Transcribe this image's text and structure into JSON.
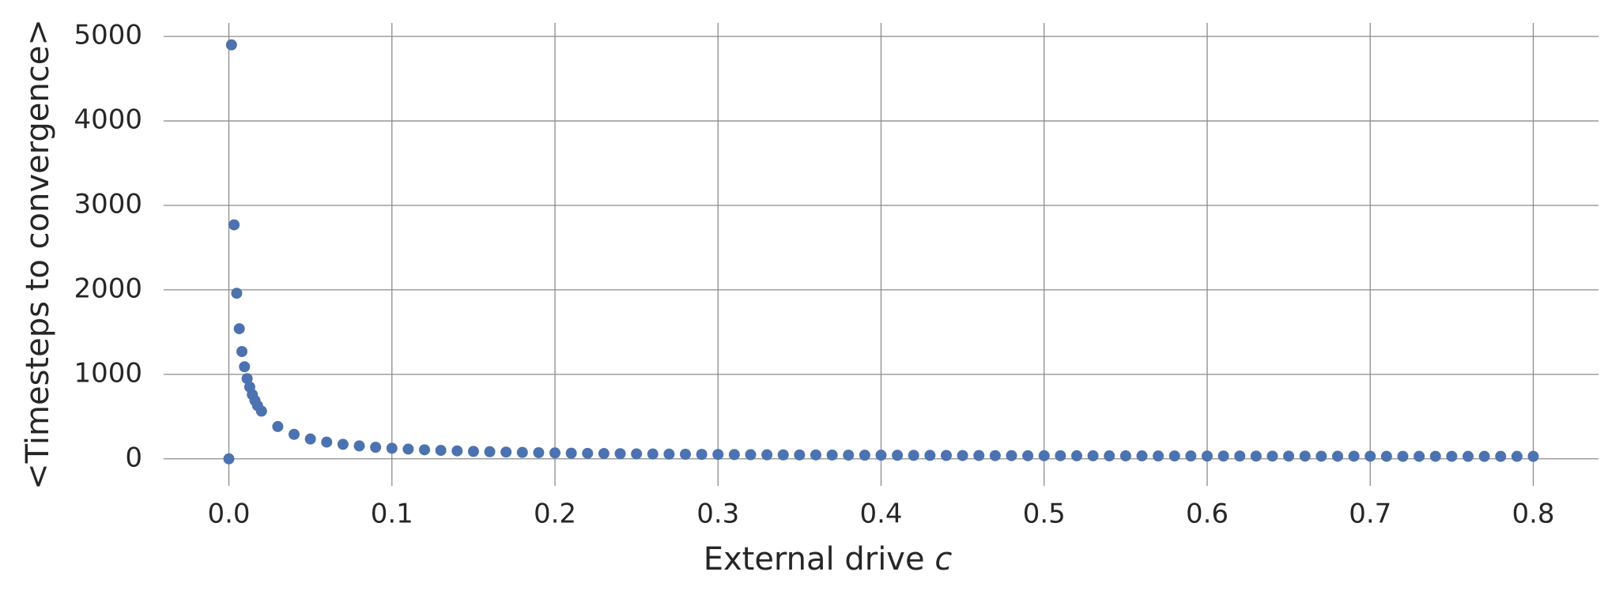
{
  "chart_data": {
    "type": "scatter",
    "x_label": {
      "text": "External drive",
      "symbol": "c"
    },
    "y_label": "<Timesteps to convergence>",
    "color": "#4c72b0",
    "grid": true,
    "xlim": [
      -0.04,
      0.84
    ],
    "ylim": [
      -320,
      5160
    ],
    "xticks": [
      {
        "value": 0,
        "label": "0.0"
      },
      0.1,
      0.2,
      0.3,
      0.4,
      0.5,
      0.6,
      0.7,
      0.8
    ],
    "yticks": [
      0,
      1000,
      2000,
      3000,
      4000,
      5000
    ],
    "x": [
      0,
      0.0016,
      0.0032,
      0.0048,
      0.0064,
      0.008,
      0.0096,
      0.0112,
      0.0128,
      0.0144,
      0.016,
      0.0176,
      0.02,
      0.03,
      0.04,
      0.05,
      0.06,
      0.07,
      0.08,
      0.09,
      0.1,
      0.11,
      0.12,
      0.13,
      0.14,
      0.15,
      0.16,
      0.17,
      0.18,
      0.19,
      0.2,
      0.21,
      0.22,
      0.23,
      0.24,
      0.25,
      0.26,
      0.27,
      0.28,
      0.29,
      0.3,
      0.31,
      0.32,
      0.33,
      0.34,
      0.35,
      0.36,
      0.37,
      0.38,
      0.39,
      0.4,
      0.41,
      0.42,
      0.43,
      0.44,
      0.45,
      0.46,
      0.47,
      0.48,
      0.49,
      0.5,
      0.51,
      0.52,
      0.53,
      0.54,
      0.55,
      0.56,
      0.57,
      0.58,
      0.59,
      0.6,
      0.61,
      0.62,
      0.63,
      0.64,
      0.65,
      0.66,
      0.67,
      0.68,
      0.69,
      0.7,
      0.71,
      0.72,
      0.73,
      0.74,
      0.75,
      0.76,
      0.77,
      0.78,
      0.79,
      0.8
    ],
    "values": [
      0,
      4900,
      2770,
      1960,
      1540,
      1270,
      1090,
      950,
      850,
      760,
      690,
      630,
      565,
      382,
      290,
      235,
      198,
      172,
      153,
      137,
      125,
      115,
      107,
      100,
      94,
      88,
      84,
      80,
      76,
      73,
      70,
      67,
      65,
      63,
      61,
      59,
      57,
      56,
      54,
      53,
      52,
      50,
      49,
      48,
      47,
      46,
      46,
      45,
      44,
      43,
      43,
      42,
      41,
      41,
      40,
      39,
      39,
      38,
      38,
      37,
      37,
      37,
      36,
      36,
      35,
      35,
      35,
      34,
      34,
      34,
      33,
      33,
      33,
      32,
      32,
      32,
      32,
      31,
      31,
      31,
      31,
      30,
      30,
      30,
      30,
      30,
      29,
      29,
      29,
      29,
      29
    ]
  }
}
